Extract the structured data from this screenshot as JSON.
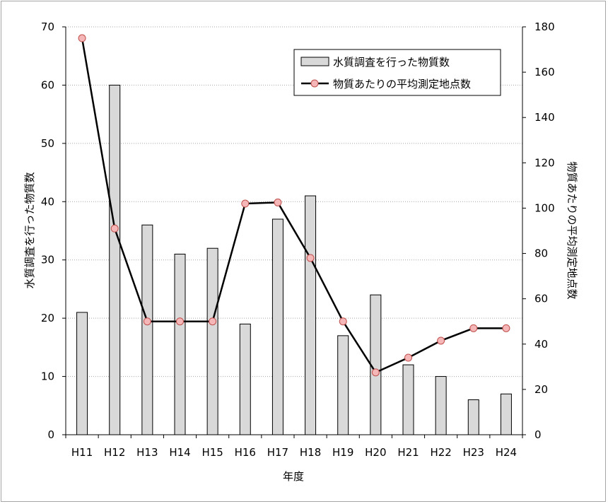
{
  "chart_data": {
    "type": "bar",
    "categories": [
      "H11",
      "H12",
      "H13",
      "H14",
      "H15",
      "H16",
      "H17",
      "H18",
      "H19",
      "H20",
      "H21",
      "H22",
      "H23",
      "H24"
    ],
    "series": [
      {
        "name": "水質調査を行った物質数",
        "type": "bar",
        "axis": "left",
        "values": [
          21,
          60,
          36,
          31,
          32,
          19,
          37,
          41,
          17,
          24,
          12,
          10,
          6,
          7
        ]
      },
      {
        "name": "物質あたりの平均測定地点数",
        "type": "line",
        "axis": "right",
        "values": [
          175,
          91,
          50,
          50,
          50,
          102,
          102.5,
          78,
          50,
          27.5,
          34,
          41.5,
          47,
          47
        ]
      }
    ],
    "xlabel": "年度",
    "ylabel": "水質調査を行った物質数",
    "y2label": "物質あたりの平均測定地点数",
    "ylim": [
      0,
      70
    ],
    "y2lim": [
      0,
      180
    ],
    "yticks": [
      0,
      10,
      20,
      30,
      40,
      50,
      60,
      70
    ],
    "y2ticks": [
      0,
      20,
      40,
      60,
      80,
      100,
      120,
      140,
      160,
      180
    ],
    "grid": true,
    "legend_position": "top-right",
    "colors": {
      "bar_fill": "#d9d9d9",
      "bar_stroke": "#000000",
      "line": "#000000",
      "marker_fill": "#f4b6b6",
      "marker_stroke": "#c0504d",
      "grid": "#a6a6a6"
    }
  }
}
